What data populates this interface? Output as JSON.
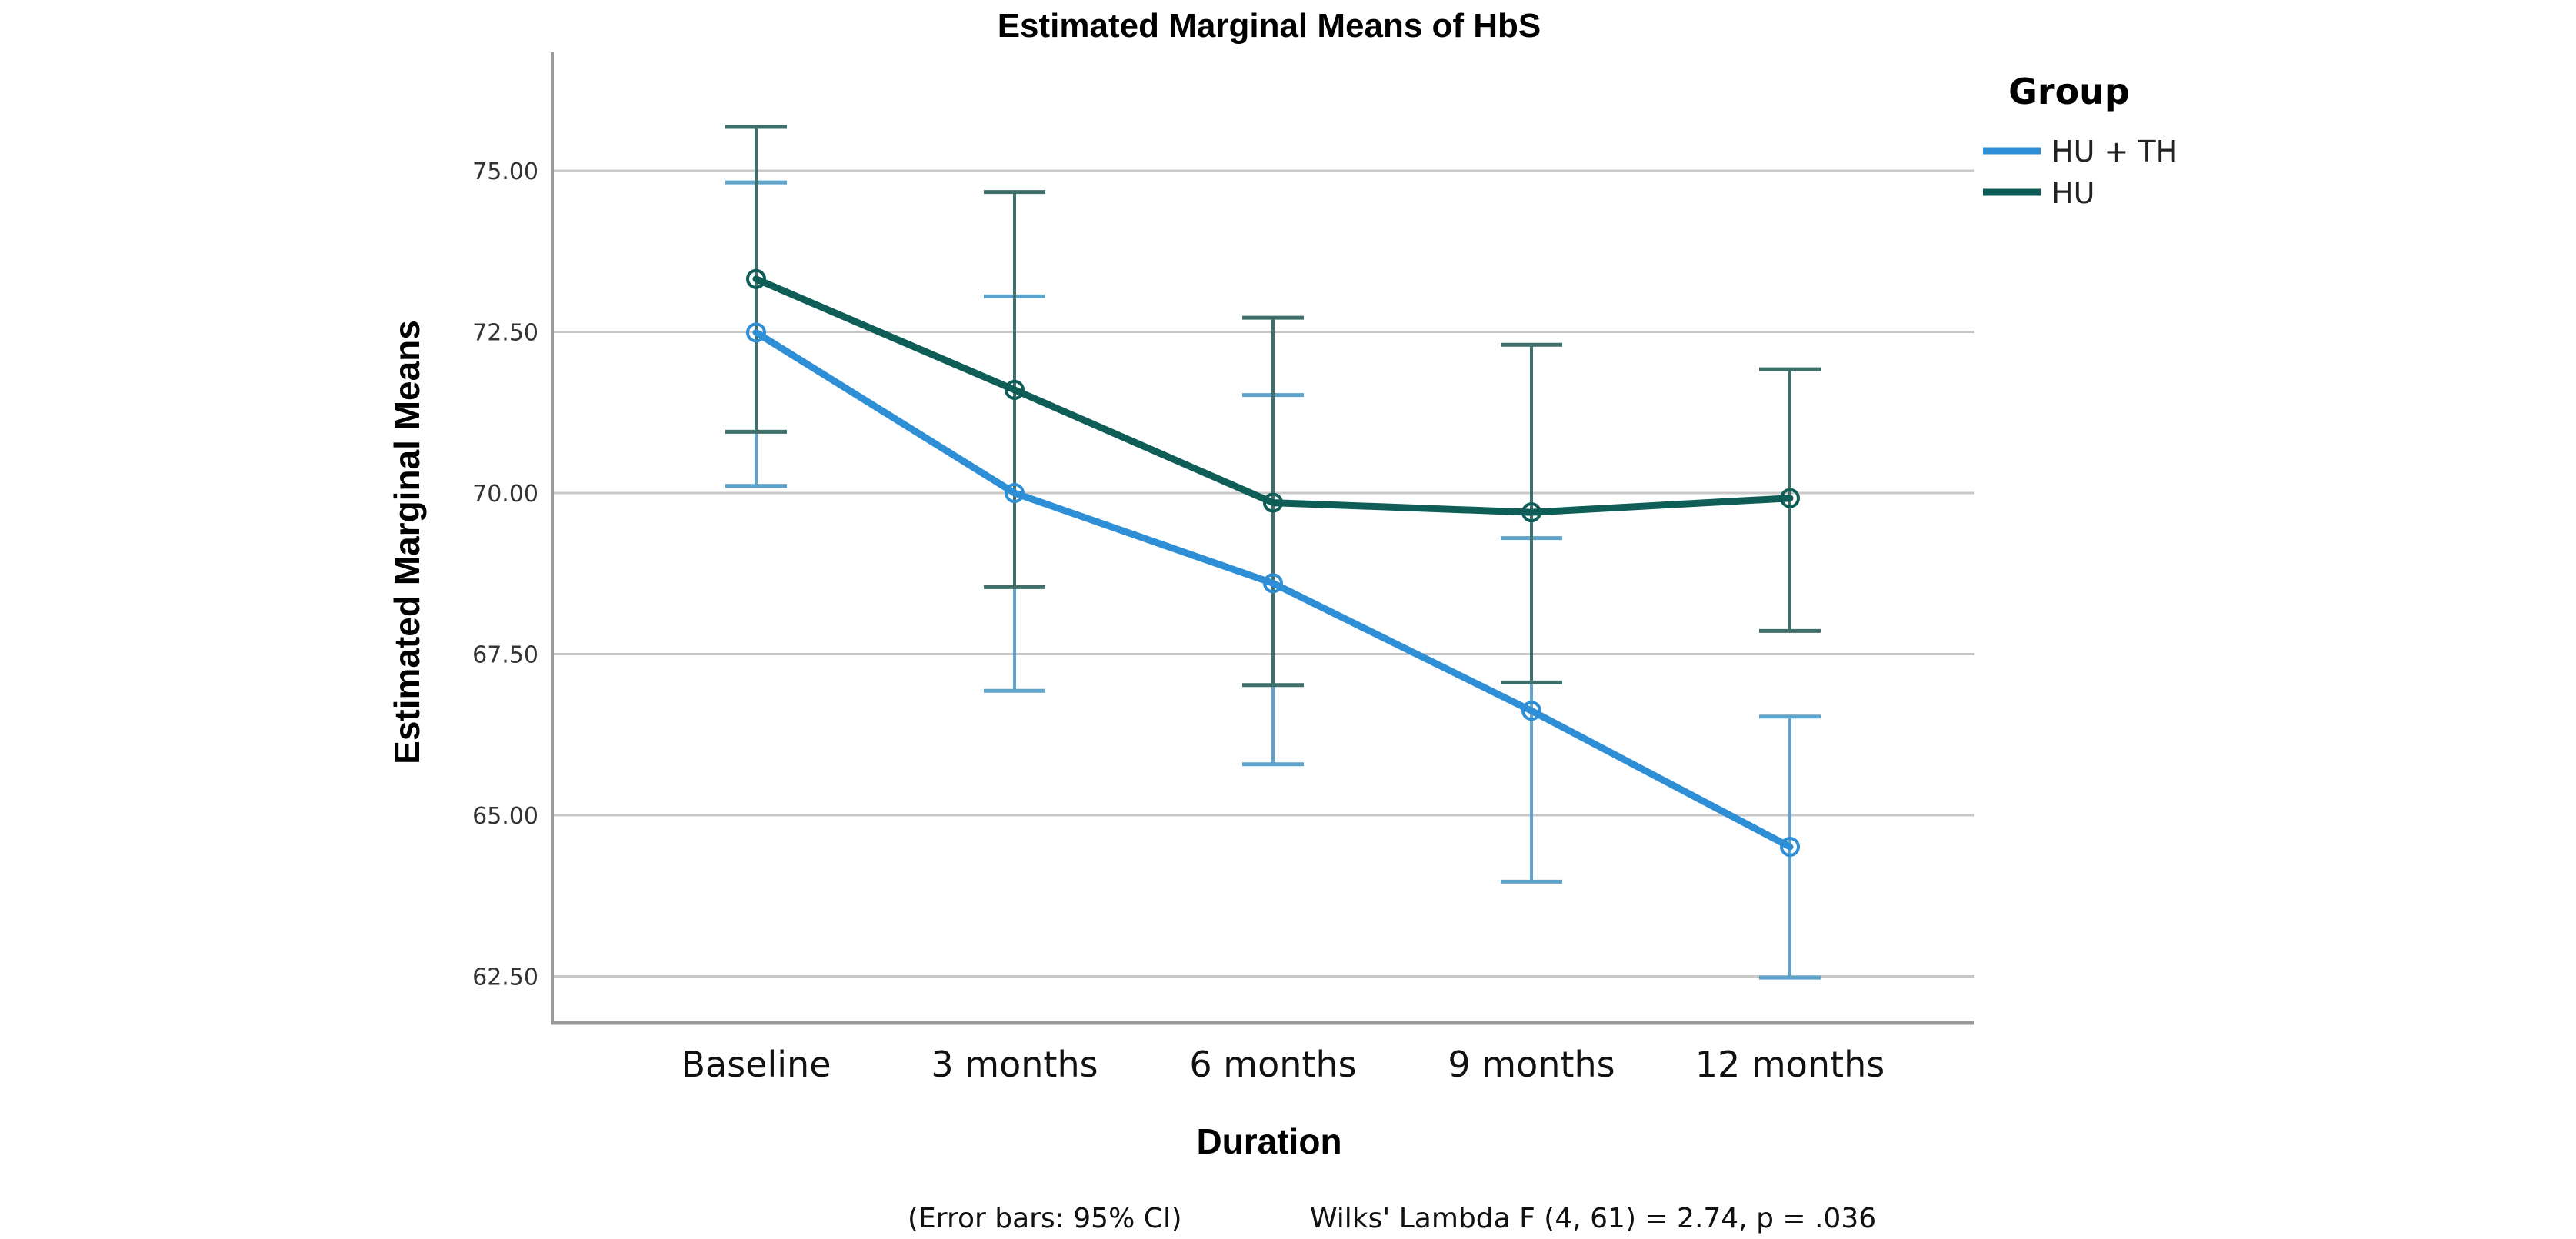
{
  "chart_data": {
    "type": "line",
    "title": "Estimated Marginal Means of HbS",
    "xlabel": "Duration",
    "ylabel": "Estimated Marginal Means",
    "categories": [
      "Baseline",
      "3 months",
      "6 months",
      "9 months",
      "12 months"
    ],
    "yticks": [
      "62.50",
      "65.00",
      "67.50",
      "70.00",
      "72.50",
      "75.00"
    ],
    "ylim": [
      61.3,
      76.5
    ],
    "grid": true,
    "legend": {
      "title": "Group",
      "position": "top-right"
    },
    "series": [
      {
        "name": "HU + TH",
        "color": "#2f8fd6",
        "values": [
          72.49,
          70.0,
          68.6,
          66.62,
          64.51
        ],
        "ci_lower": [
          70.11,
          66.93,
          65.79,
          63.97,
          62.48
        ],
        "ci_upper": [
          74.82,
          73.05,
          71.52,
          69.3,
          66.53
        ]
      },
      {
        "name": "HU",
        "color": "#0e5e57",
        "values": [
          73.32,
          71.6,
          69.85,
          69.7,
          69.92
        ],
        "ci_lower": [
          70.95,
          68.54,
          67.02,
          67.06,
          67.86
        ],
        "ci_upper": [
          75.68,
          74.67,
          72.72,
          72.3,
          71.92
        ]
      }
    ],
    "annotations": {
      "error_bars": "(Error bars: 95% CI)",
      "test": "Wilks' Lambda F (4, 61) = 2.74, p = .036"
    }
  }
}
